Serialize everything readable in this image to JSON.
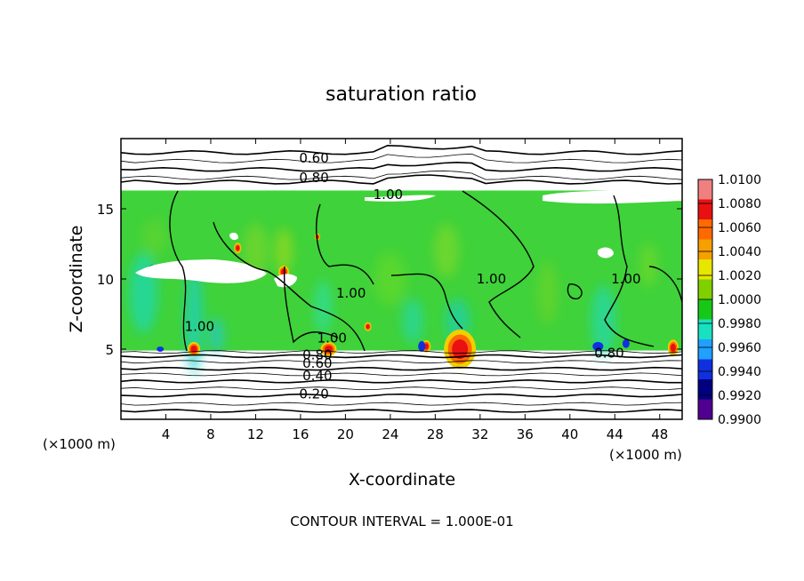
{
  "chart_data": {
    "type": "heatmap",
    "title": "saturation ratio",
    "xlabel": "X-coordinate",
    "ylabel": "Z-coordinate",
    "x_unit_left": "(×1000 m)",
    "x_unit_right": "(×1000 m)",
    "xlim": [
      0,
      50
    ],
    "ylim": [
      0,
      20
    ],
    "xticks": [
      4,
      8,
      12,
      16,
      20,
      24,
      28,
      32,
      36,
      40,
      44,
      48
    ],
    "yticks": [
      5,
      10,
      15
    ],
    "footer": "CONTOUR INTERVAL =  1.000E-01",
    "colorbar": {
      "levels": [
        "1.0100",
        "1.0080",
        "1.0060",
        "1.0040",
        "1.0020",
        "1.0000",
        "0.9980",
        "0.9960",
        "0.9940",
        "0.9920",
        "0.9900"
      ],
      "colors": [
        "#f08080",
        "#e81010",
        "#ff6a00",
        "#f5a000",
        "#e6e600",
        "#80d000",
        "#18c818",
        "#18e0c0",
        "#20a0ff",
        "#1030e0",
        "#000080",
        "#500090"
      ]
    },
    "contour_labels": [
      {
        "text": "0.60",
        "x": 17.2,
        "y": 18.6
      },
      {
        "text": "0.80",
        "x": 17.2,
        "y": 17.2
      },
      {
        "text": "1.00",
        "x": 23.8,
        "y": 16.0
      },
      {
        "text": "1.00",
        "x": 7.0,
        "y": 6.6
      },
      {
        "text": "1.00",
        "x": 20.5,
        "y": 9.0
      },
      {
        "text": "1.00",
        "x": 18.8,
        "y": 5.8
      },
      {
        "text": "1.00",
        "x": 33.0,
        "y": 10.0
      },
      {
        "text": "1.00",
        "x": 45.0,
        "y": 10.0
      },
      {
        "text": "0.80",
        "x": 17.5,
        "y": 4.6
      },
      {
        "text": "0.60",
        "x": 17.5,
        "y": 4.0
      },
      {
        "text": "0.40",
        "x": 17.5,
        "y": 3.1
      },
      {
        "text": "0.20",
        "x": 17.2,
        "y": 1.8
      },
      {
        "text": "0.80",
        "x": 43.5,
        "y": 4.7
      }
    ],
    "background_contours_z": [
      19.0,
      18.4,
      17.8,
      17.2,
      16.9,
      4.8,
      4.5,
      4.1,
      3.6,
      3.2,
      2.7,
      2.2,
      1.7,
      1.1,
      0.6
    ],
    "cloud_layer": {
      "z_bottom": 4.9,
      "z_top": 16.3
    }
  }
}
